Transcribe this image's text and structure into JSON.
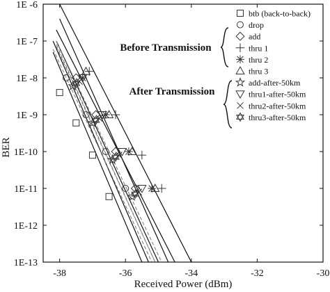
{
  "chart_data": {
    "type": "scatter",
    "xlabel": "Received Power (dBm)",
    "ylabel": "BER",
    "xlim": [
      -38.5,
      -30
    ],
    "ylim_log10": [
      -13,
      -6
    ],
    "log_y": true,
    "grid": false,
    "x_ticks": [
      -38,
      -36,
      -34,
      -32,
      -30
    ],
    "x_tick_labels": [
      "-38",
      "-36",
      "-34",
      "-32",
      "-30"
    ],
    "y_ticks_log10": [
      -6,
      -7,
      -8,
      -9,
      -10,
      -11,
      -12,
      -13
    ],
    "y_tick_labels": [
      "1E -6",
      "1E -7",
      "1E -8",
      "1E -9",
      "1E-10",
      "1E-11",
      "1E-12",
      "1E-13"
    ],
    "legend_position": "top-right",
    "annotations": [
      "Before Transmission",
      "After Transmission"
    ],
    "series": [
      {
        "name": "btb (back-to-back)",
        "marker": "square",
        "line": "solid",
        "points": [
          [
            -38.0,
            4e-09
          ],
          [
            -37.5,
            6e-10
          ],
          [
            -37.0,
            8e-11
          ],
          [
            -36.5,
            6e-12
          ]
        ],
        "fit": [
          [
            -38.2,
            5e-08
          ],
          [
            -35.5,
            1e-13
          ]
        ]
      },
      {
        "name": "drop",
        "marker": "circle",
        "line": "solid",
        "points": [
          [
            -37.8,
            1e-08
          ],
          [
            -37.2,
            1e-09
          ],
          [
            -36.6,
            1e-10
          ],
          [
            -36.0,
            1e-11
          ]
        ],
        "fit": [
          [
            -38.2,
            1e-07
          ],
          [
            -35.3,
            1e-13
          ]
        ]
      },
      {
        "name": "add",
        "marker": "diamond",
        "line": "solid",
        "points": [
          [
            -37.5,
            1e-08
          ],
          [
            -36.9,
            1e-09
          ],
          [
            -36.3,
            1e-10
          ],
          [
            -35.7,
            1e-11
          ]
        ],
        "fit": [
          [
            -38.1,
            1e-07
          ],
          [
            -35.0,
            1e-13
          ]
        ]
      },
      {
        "name": "thru 1",
        "marker": "plus",
        "line": "solid",
        "points": [
          [
            -37.1,
            1.5e-08
          ],
          [
            -36.3,
            1e-09
          ],
          [
            -35.5,
            8e-11
          ],
          [
            -34.9,
            1e-11
          ]
        ],
        "fit": [
          [
            -38.0,
            1e-06
          ],
          [
            -34.0,
            1e-13
          ]
        ]
      },
      {
        "name": "thru 2",
        "marker": "asterisk",
        "line": "solid",
        "points": [
          [
            -37.3,
            1e-08
          ],
          [
            -36.6,
            1e-09
          ],
          [
            -35.9,
            1e-10
          ],
          [
            -35.2,
            1e-11
          ]
        ],
        "fit": [
          [
            -38.1,
            2e-07
          ],
          [
            -34.5,
            1e-13
          ]
        ]
      },
      {
        "name": "thru 3",
        "marker": "triangle-up",
        "line": "solid",
        "points": [
          [
            -37.2,
            1.5e-08
          ],
          [
            -36.5,
            1e-09
          ],
          [
            -35.8,
            1e-10
          ],
          [
            -35.1,
            1e-11
          ]
        ],
        "fit": [
          [
            -38.0,
            4e-07
          ],
          [
            -34.7,
            1e-13
          ]
        ]
      },
      {
        "name": "add-after-50km",
        "marker": "star",
        "line": "dashed",
        "points": [
          [
            -37.6,
            6e-09
          ],
          [
            -37.0,
            6e-10
          ],
          [
            -36.4,
            6e-11
          ],
          [
            -35.8,
            6e-12
          ]
        ],
        "fit": [
          [
            -38.2,
            6e-08
          ],
          [
            -35.2,
            1e-13
          ]
        ]
      },
      {
        "name": "thru1-after-50km",
        "marker": "triangle-down",
        "line": "dashed",
        "points": [
          [
            -37.3,
            1e-08
          ],
          [
            -36.7,
            1e-09
          ],
          [
            -36.1,
            1e-10
          ],
          [
            -35.5,
            1e-11
          ]
        ],
        "fit": [
          [
            -38.1,
            1e-07
          ],
          [
            -34.9,
            1e-13
          ]
        ]
      },
      {
        "name": "thru2-after-50km",
        "marker": "x",
        "line": "dashed",
        "points": [
          [
            -37.4,
            8e-09
          ],
          [
            -36.8,
            8e-10
          ],
          [
            -36.2,
            8e-11
          ],
          [
            -35.6,
            8e-12
          ]
        ],
        "fit": [
          [
            -38.1,
            8e-08
          ],
          [
            -35.1,
            1e-13
          ]
        ]
      },
      {
        "name": "thru3-after-50km",
        "marker": "hexagram",
        "line": "dashed",
        "points": [
          [
            -37.5,
            7e-09
          ],
          [
            -36.9,
            7e-10
          ],
          [
            -36.3,
            7e-11
          ],
          [
            -35.7,
            7e-12
          ]
        ],
        "fit": [
          [
            -38.1,
            7e-08
          ],
          [
            -35.1,
            1e-13
          ]
        ]
      }
    ]
  }
}
